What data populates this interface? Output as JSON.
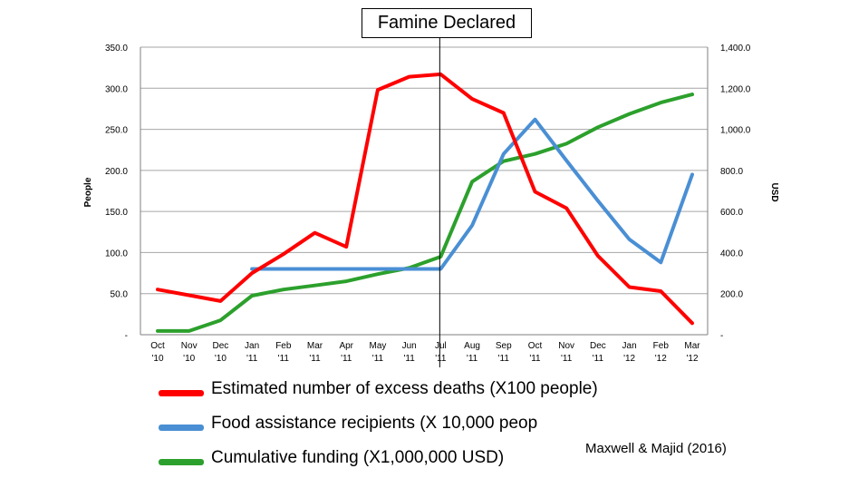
{
  "chart_data": {
    "type": "line",
    "categories": [
      [
        "Oct",
        "'10"
      ],
      [
        "Nov",
        "'10"
      ],
      [
        "Dec",
        "'10"
      ],
      [
        "Jan",
        "'11"
      ],
      [
        "Feb",
        "'11"
      ],
      [
        "Mar",
        "'11"
      ],
      [
        "Apr",
        "'11"
      ],
      [
        "May",
        "'11"
      ],
      [
        "Jun",
        "'11"
      ],
      [
        "Jul",
        "'11"
      ],
      [
        "Aug",
        "'11"
      ],
      [
        "Sep",
        "'11"
      ],
      [
        "Oct",
        "'11"
      ],
      [
        "Nov",
        "'11"
      ],
      [
        "Dec",
        "'11"
      ],
      [
        "Jan",
        "'12"
      ],
      [
        "Feb",
        "'12"
      ],
      [
        "Mar",
        "'12"
      ]
    ],
    "ylabel": "People",
    "y2label": "USD",
    "ylim": [
      0,
      350
    ],
    "y2lim": [
      0,
      1400
    ],
    "yticks": [
      "-",
      "50.0",
      "100.0",
      "150.0",
      "200.0",
      "250.0",
      "300.0",
      "350.0"
    ],
    "y2ticks": [
      "-",
      "200.0",
      "400.0",
      "600.0",
      "800.0",
      "1,000.0",
      "1,200.0",
      "1,400.0"
    ],
    "grid": true,
    "annotation": {
      "label": "Famine Declared",
      "x_index": 9
    },
    "series": [
      {
        "name": "Estimated number of excess deaths (X100 people)",
        "axis": "left",
        "color": "#ff0000",
        "values": [
          55,
          48,
          41,
          75,
          98,
          124,
          107,
          298,
          314,
          317,
          287,
          270,
          174,
          154,
          96,
          58,
          53,
          14
        ]
      },
      {
        "name": "Food assistance recipients (X 10,000 peop",
        "axis": "left",
        "color": "#4a8fd4",
        "values": [
          null,
          null,
          null,
          80,
          80,
          80,
          80,
          80,
          80,
          80,
          133,
          220,
          262,
          212,
          163,
          116,
          88,
          195
        ]
      },
      {
        "name": "Cumulative funding (X1,000,000 USD)",
        "axis": "right",
        "color": "#2ca02c",
        "values": [
          18,
          18,
          70,
          190,
          220,
          240,
          260,
          295,
          325,
          380,
          745,
          845,
          880,
          930,
          1010,
          1075,
          1130,
          1170
        ]
      }
    ]
  },
  "credit": "Maxwell & Majid (2016)"
}
